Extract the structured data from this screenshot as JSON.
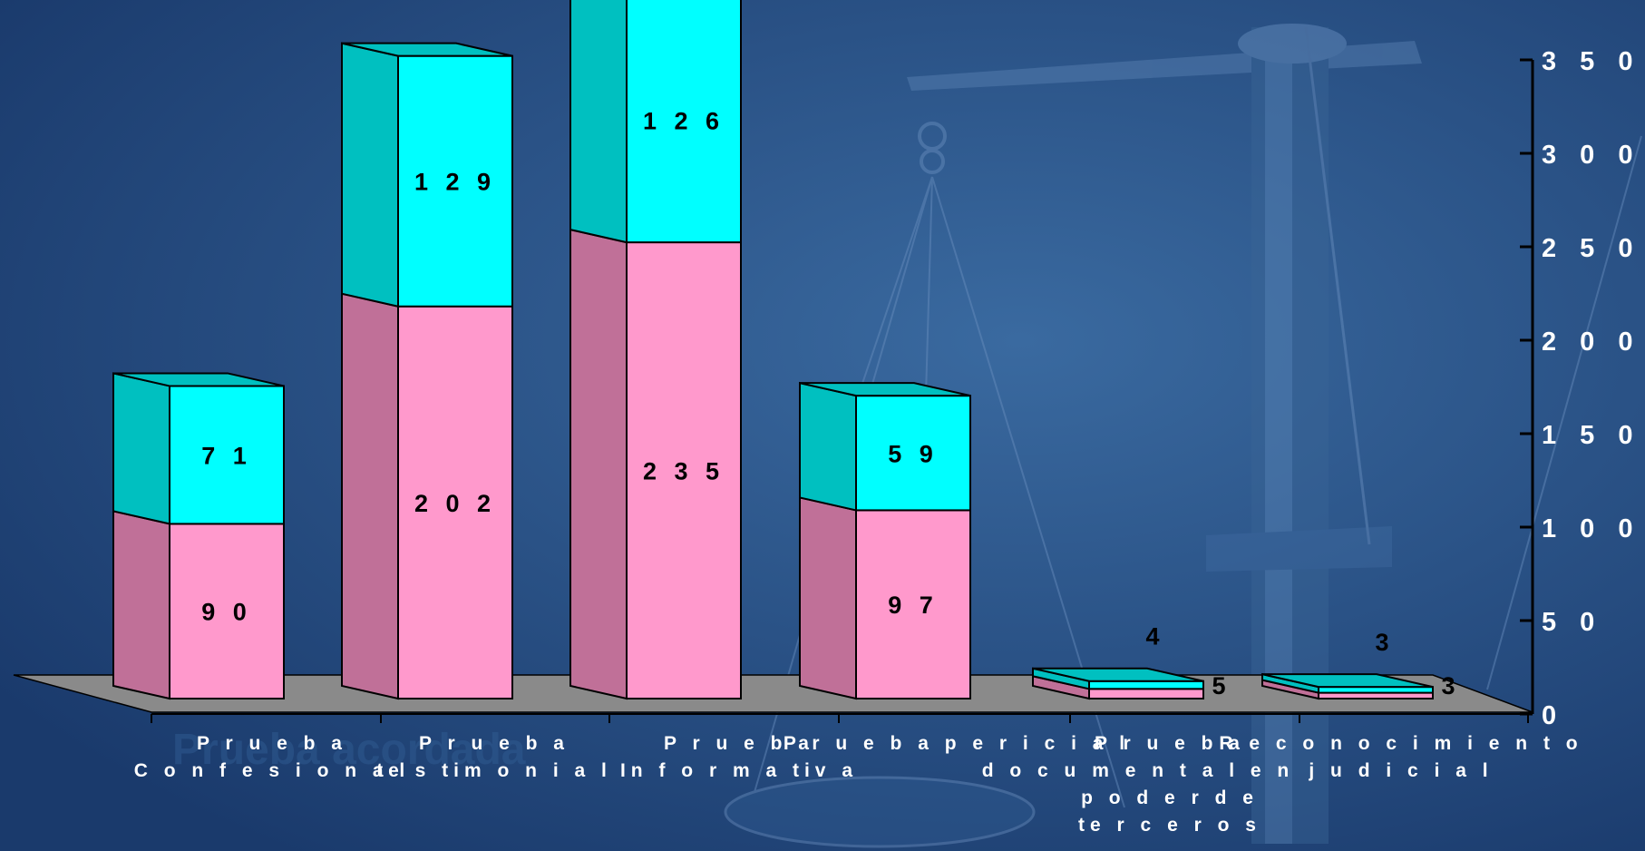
{
  "background_text": "Prueba acordada",
  "colors": {
    "background": "#1f4275",
    "series_bottom_front": "#ff99cc",
    "series_bottom_side": "#c07098",
    "series_top_front": "#00ffff",
    "series_top_side": "#00c0c0",
    "floor": "#8a8a8a"
  },
  "chart_data": {
    "type": "bar",
    "stacked": true,
    "three_d": true,
    "categories": [
      "Prueba Confesional",
      "Prueba testimonial",
      "Prueba Informativa",
      "Prueba pericial",
      "Prueba documental en poder de terceros",
      "Reconocimiento judicial"
    ],
    "category_label_lines": [
      [
        "P r u e b a",
        "C o n f e s i o n a l"
      ],
      [
        "P r u e b a",
        "te s tim o n i a l"
      ],
      [
        "P r u e b a",
        "In f o r m a tiv a"
      ],
      [
        "P r u e b a  p e r i c i a l"
      ],
      [
        "P r u e b a",
        "d o c u m e n t a l  e n",
        "p o d e r  d e",
        "te r c e r o s"
      ],
      [
        "R e c o n o c i m i e n t o",
        "j u d i c i a l"
      ]
    ],
    "series": [
      {
        "values": [
          90,
          202,
          235,
          97,
          5,
          3
        ]
      },
      {
        "values": [
          71,
          129,
          126,
          59,
          4,
          3
        ]
      }
    ],
    "value_labels": [
      [
        "9 0",
        "2 0 2",
        "2 3 5",
        "9 7",
        "5",
        "3"
      ],
      [
        "7 1",
        "1 2 9",
        "1 2 6",
        "5 9",
        "4",
        "3"
      ]
    ],
    "ylim": [
      0,
      350
    ],
    "y_ticks": [
      0,
      50,
      100,
      150,
      200,
      250,
      300,
      350
    ],
    "y_tick_labels": [
      "0",
      "5 0",
      "1 0 0",
      "1 5 0",
      "2 0 0",
      "2 5 0",
      "3 0 0",
      "3 5 0"
    ],
    "y_axis_position": "right",
    "grid": false,
    "legend": "none"
  }
}
